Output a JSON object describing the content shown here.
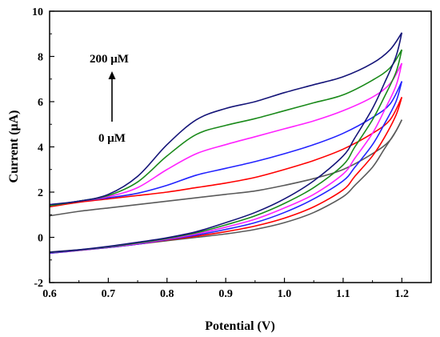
{
  "chart_data": {
    "type": "line",
    "title": "",
    "xlabel": "Potential (V)",
    "ylabel": "Current (μA)",
    "xlim": [
      0.6,
      1.25
    ],
    "ylim": [
      -2,
      10
    ],
    "xticks": [
      "0.6",
      "0.7",
      "0.8",
      "0.9",
      "1.0",
      "1.1",
      "1.2"
    ],
    "yticks": [
      "-2",
      "0",
      "2",
      "4",
      "6",
      "8",
      "10"
    ],
    "grid": false,
    "legend": "none",
    "annotations": {
      "top": "200 μM",
      "bottom": "0 μM"
    },
    "series": [
      {
        "color": "#5a5a5a",
        "forward": [
          [
            0.6,
            0.95
          ],
          [
            0.65,
            1.15
          ],
          [
            0.7,
            1.3
          ],
          [
            0.75,
            1.45
          ],
          [
            0.8,
            1.6
          ],
          [
            0.85,
            1.75
          ],
          [
            0.9,
            1.9
          ],
          [
            0.95,
            2.05
          ],
          [
            1.0,
            2.3
          ],
          [
            1.05,
            2.6
          ],
          [
            1.1,
            3.0
          ],
          [
            1.15,
            3.7
          ],
          [
            1.18,
            4.3
          ],
          [
            1.2,
            5.2
          ]
        ],
        "reverse": [
          [
            1.2,
            5.2
          ],
          [
            1.19,
            4.7
          ],
          [
            1.17,
            3.9
          ],
          [
            1.15,
            3.1
          ],
          [
            1.12,
            2.3
          ],
          [
            1.1,
            1.8
          ],
          [
            1.05,
            1.1
          ],
          [
            1.0,
            0.65
          ],
          [
            0.95,
            0.35
          ],
          [
            0.9,
            0.15
          ],
          [
            0.85,
            0.0
          ],
          [
            0.8,
            -0.15
          ],
          [
            0.75,
            -0.3
          ],
          [
            0.7,
            -0.45
          ],
          [
            0.65,
            -0.55
          ],
          [
            0.6,
            -0.65
          ]
        ]
      },
      {
        "color": "#ff0000",
        "forward": [
          [
            0.6,
            1.35
          ],
          [
            0.65,
            1.55
          ],
          [
            0.7,
            1.7
          ],
          [
            0.75,
            1.85
          ],
          [
            0.8,
            2.0
          ],
          [
            0.85,
            2.2
          ],
          [
            0.9,
            2.4
          ],
          [
            0.95,
            2.65
          ],
          [
            1.0,
            3.0
          ],
          [
            1.05,
            3.4
          ],
          [
            1.1,
            3.9
          ],
          [
            1.15,
            4.6
          ],
          [
            1.18,
            5.2
          ],
          [
            1.2,
            6.2
          ]
        ],
        "reverse": [
          [
            1.2,
            6.2
          ],
          [
            1.19,
            5.4
          ],
          [
            1.17,
            4.4
          ],
          [
            1.15,
            3.6
          ],
          [
            1.12,
            2.7
          ],
          [
            1.1,
            2.1
          ],
          [
            1.05,
            1.35
          ],
          [
            1.0,
            0.85
          ],
          [
            0.95,
            0.5
          ],
          [
            0.9,
            0.25
          ],
          [
            0.85,
            0.05
          ],
          [
            0.8,
            -0.12
          ],
          [
            0.75,
            -0.3
          ],
          [
            0.7,
            -0.45
          ],
          [
            0.65,
            -0.58
          ],
          [
            0.6,
            -0.7
          ]
        ]
      },
      {
        "color": "#2222ff",
        "forward": [
          [
            0.6,
            1.4
          ],
          [
            0.65,
            1.6
          ],
          [
            0.7,
            1.75
          ],
          [
            0.75,
            1.95
          ],
          [
            0.8,
            2.3
          ],
          [
            0.85,
            2.75
          ],
          [
            0.9,
            3.05
          ],
          [
            0.95,
            3.35
          ],
          [
            1.0,
            3.7
          ],
          [
            1.05,
            4.1
          ],
          [
            1.1,
            4.6
          ],
          [
            1.15,
            5.3
          ],
          [
            1.18,
            5.9
          ],
          [
            1.2,
            6.9
          ]
        ],
        "reverse": [
          [
            1.2,
            6.9
          ],
          [
            1.19,
            6.0
          ],
          [
            1.17,
            5.0
          ],
          [
            1.15,
            4.1
          ],
          [
            1.12,
            3.1
          ],
          [
            1.1,
            2.5
          ],
          [
            1.05,
            1.7
          ],
          [
            1.0,
            1.1
          ],
          [
            0.95,
            0.65
          ],
          [
            0.9,
            0.35
          ],
          [
            0.85,
            0.1
          ],
          [
            0.8,
            -0.1
          ],
          [
            0.75,
            -0.3
          ],
          [
            0.7,
            -0.45
          ],
          [
            0.65,
            -0.58
          ],
          [
            0.6,
            -0.7
          ]
        ]
      },
      {
        "color": "#ff22ff",
        "forward": [
          [
            0.6,
            1.4
          ],
          [
            0.65,
            1.6
          ],
          [
            0.7,
            1.8
          ],
          [
            0.75,
            2.2
          ],
          [
            0.8,
            3.0
          ],
          [
            0.85,
            3.7
          ],
          [
            0.9,
            4.1
          ],
          [
            0.95,
            4.45
          ],
          [
            1.0,
            4.8
          ],
          [
            1.05,
            5.15
          ],
          [
            1.1,
            5.6
          ],
          [
            1.15,
            6.2
          ],
          [
            1.18,
            6.8
          ],
          [
            1.2,
            7.7
          ]
        ],
        "reverse": [
          [
            1.2,
            7.7
          ],
          [
            1.19,
            6.7
          ],
          [
            1.17,
            5.6
          ],
          [
            1.15,
            4.6
          ],
          [
            1.12,
            3.5
          ],
          [
            1.1,
            2.8
          ],
          [
            1.05,
            1.9
          ],
          [
            1.0,
            1.3
          ],
          [
            0.95,
            0.8
          ],
          [
            0.9,
            0.45
          ],
          [
            0.85,
            0.15
          ],
          [
            0.8,
            -0.08
          ],
          [
            0.75,
            -0.28
          ],
          [
            0.7,
            -0.43
          ],
          [
            0.65,
            -0.57
          ],
          [
            0.6,
            -0.68
          ]
        ]
      },
      {
        "color": "#1a8a1a",
        "forward": [
          [
            0.6,
            1.4
          ],
          [
            0.65,
            1.6
          ],
          [
            0.7,
            1.85
          ],
          [
            0.75,
            2.45
          ],
          [
            0.8,
            3.6
          ],
          [
            0.85,
            4.55
          ],
          [
            0.9,
            4.95
          ],
          [
            0.95,
            5.25
          ],
          [
            1.0,
            5.6
          ],
          [
            1.05,
            5.95
          ],
          [
            1.1,
            6.3
          ],
          [
            1.15,
            6.95
          ],
          [
            1.18,
            7.5
          ],
          [
            1.2,
            8.3
          ]
        ],
        "reverse": [
          [
            1.2,
            8.3
          ],
          [
            1.19,
            7.3
          ],
          [
            1.17,
            6.2
          ],
          [
            1.15,
            5.2
          ],
          [
            1.12,
            4.0
          ],
          [
            1.1,
            3.2
          ],
          [
            1.05,
            2.2
          ],
          [
            1.0,
            1.5
          ],
          [
            0.95,
            0.95
          ],
          [
            0.9,
            0.55
          ],
          [
            0.85,
            0.2
          ],
          [
            0.8,
            -0.05
          ],
          [
            0.75,
            -0.25
          ],
          [
            0.7,
            -0.42
          ],
          [
            0.65,
            -0.56
          ],
          [
            0.6,
            -0.67
          ]
        ]
      },
      {
        "color": "#141478",
        "forward": [
          [
            0.6,
            1.45
          ],
          [
            0.65,
            1.6
          ],
          [
            0.7,
            1.9
          ],
          [
            0.75,
            2.7
          ],
          [
            0.8,
            4.1
          ],
          [
            0.85,
            5.2
          ],
          [
            0.9,
            5.7
          ],
          [
            0.95,
            6.0
          ],
          [
            1.0,
            6.4
          ],
          [
            1.05,
            6.75
          ],
          [
            1.1,
            7.1
          ],
          [
            1.15,
            7.7
          ],
          [
            1.18,
            8.3
          ],
          [
            1.2,
            9.05
          ]
        ],
        "reverse": [
          [
            1.2,
            9.05
          ],
          [
            1.19,
            8.0
          ],
          [
            1.17,
            6.8
          ],
          [
            1.15,
            5.7
          ],
          [
            1.12,
            4.4
          ],
          [
            1.1,
            3.6
          ],
          [
            1.05,
            2.5
          ],
          [
            1.0,
            1.7
          ],
          [
            0.95,
            1.1
          ],
          [
            0.9,
            0.65
          ],
          [
            0.85,
            0.25
          ],
          [
            0.8,
            -0.02
          ],
          [
            0.75,
            -0.22
          ],
          [
            0.7,
            -0.4
          ],
          [
            0.65,
            -0.55
          ],
          [
            0.6,
            -0.66
          ]
        ]
      }
    ]
  }
}
